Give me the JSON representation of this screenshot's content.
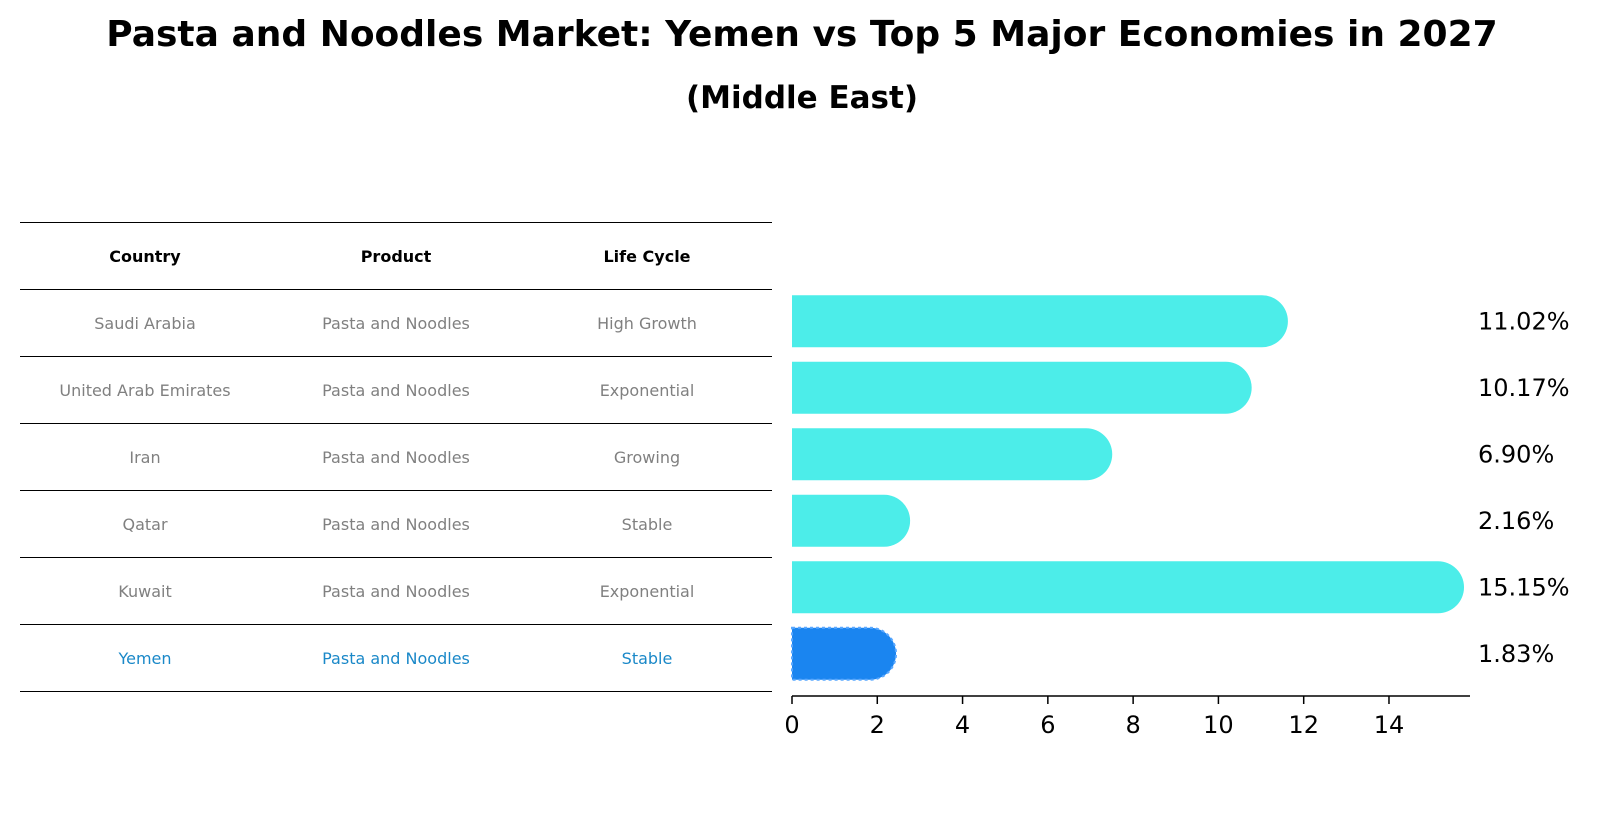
{
  "title": "Pasta and Noodles Market: Yemen vs Top 5 Major Economies in 2027",
  "subtitle": "(Middle East)",
  "table": {
    "headers": [
      "Country",
      "Product",
      "Life Cycle"
    ],
    "rows": [
      {
        "country": "Saudi Arabia",
        "product": "Pasta and Noodles",
        "life_cycle": "High Growth"
      },
      {
        "country": "United Arab Emirates",
        "product": "Pasta and Noodles",
        "life_cycle": "Exponential"
      },
      {
        "country": "Iran",
        "product": "Pasta and Noodles",
        "life_cycle": "Growing"
      },
      {
        "country": "Qatar",
        "product": "Pasta and Noodles",
        "life_cycle": "Stable"
      },
      {
        "country": "Kuwait",
        "product": "Pasta and Noodles",
        "life_cycle": "Exponential"
      },
      {
        "country": "Yemen",
        "product": "Pasta and Noodles",
        "life_cycle": "Stable"
      }
    ]
  },
  "colors": {
    "bar": "#4cede9",
    "highlight_bar": "#1a85f0",
    "highlight_text": "#1a88c8",
    "row_text": "#808080"
  },
  "chart_data": {
    "type": "bar",
    "orientation": "horizontal",
    "title": "Pasta and Noodles Market: Yemen vs Top 5 Major Economies in 2027",
    "subtitle": "(Middle East)",
    "categories": [
      "Saudi Arabia",
      "United Arab Emirates",
      "Iran",
      "Qatar",
      "Kuwait",
      "Yemen"
    ],
    "values": [
      11.02,
      10.17,
      6.9,
      2.16,
      15.15,
      1.83
    ],
    "value_labels": [
      "11.02%",
      "10.17%",
      "6.90%",
      "2.16%",
      "15.15%",
      "1.83%"
    ],
    "highlight": "Yemen",
    "xlim": [
      0,
      15.9
    ],
    "xticks": [
      0,
      2,
      4,
      6,
      8,
      10,
      12,
      14
    ],
    "xlabel": "",
    "ylabel": "",
    "grid": false
  }
}
